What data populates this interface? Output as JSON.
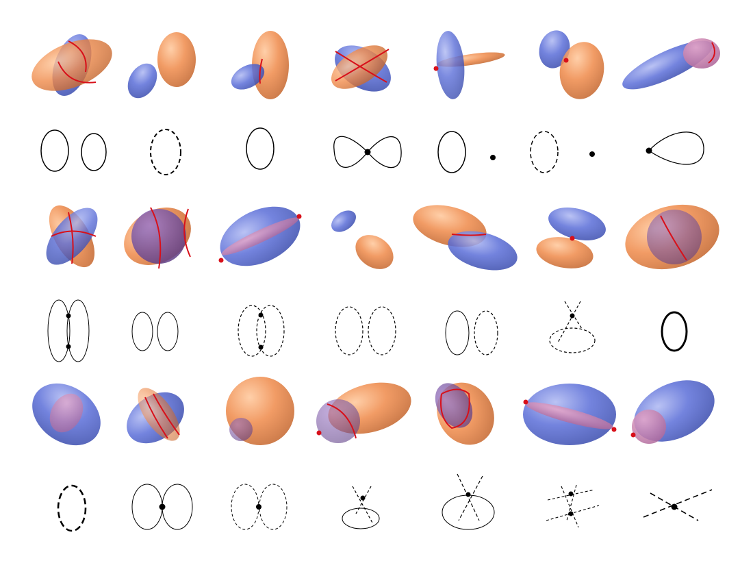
{
  "colors": {
    "orange_ellipsoid": "#ef8a4a",
    "blue_ellipsoid": "#5b6ed8",
    "overlap_pink": "#d77aa8",
    "intersection_curve": "#d8101a",
    "curve_ink": "#000000"
  },
  "layout": {
    "columns": 7,
    "rows": 6
  }
}
